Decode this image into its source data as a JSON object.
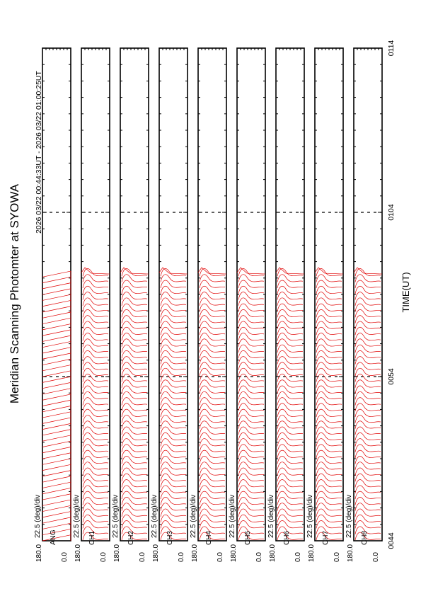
{
  "title": "Meridian Scanning Photomter at SYOWA",
  "time_range_label": "2026 03/22 00:44:33UT - 2026 03/22 01:00:25UT",
  "chart_data": {
    "type": "line",
    "title": "Meridian Scanning Photomter at SYOWA",
    "xlabel": "TIME(UT)",
    "x_ticks": [
      "0044",
      "0054",
      "0104",
      "0114"
    ],
    "xlim_minutes_ut": [
      44,
      74
    ],
    "data_end_minute_ut": 60.42,
    "scale_label": "22.5 (deg)/div",
    "y_ticks": [
      "180.0",
      "0.0"
    ],
    "ylim": [
      0,
      180
    ],
    "grid": false,
    "line_color": "#e00000",
    "panels": [
      {
        "channel": "ANG",
        "trace_kind": "sweep"
      },
      {
        "channel": "CH1",
        "trace_kind": "intensity"
      },
      {
        "channel": "CH2",
        "trace_kind": "intensity"
      },
      {
        "channel": "CH3",
        "trace_kind": "intensity"
      },
      {
        "channel": "CH4",
        "trace_kind": "intensity"
      },
      {
        "channel": "CH5",
        "trace_kind": "intensity"
      },
      {
        "channel": "CH6",
        "trace_kind": "intensity"
      },
      {
        "channel": "CH7",
        "trace_kind": "intensity"
      },
      {
        "channel": "CH8",
        "trace_kind": "intensity"
      }
    ]
  }
}
